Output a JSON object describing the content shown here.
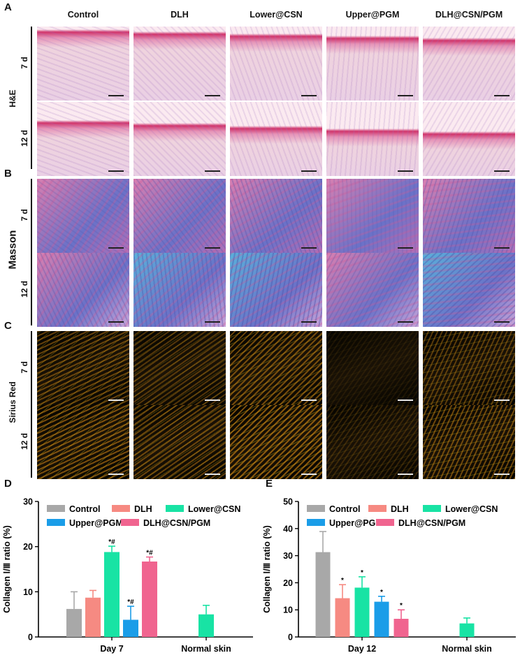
{
  "histology": {
    "letters": [
      "A",
      "B",
      "C"
    ],
    "columns": [
      "Control",
      "DLH",
      "Lower@CSN",
      "Upper@PGM",
      "DLH@CSN/PGM"
    ],
    "rows": [
      "7 d",
      "12 d"
    ],
    "stains": [
      "H&E",
      "Masson",
      "Sirius Red"
    ],
    "colors": {
      "he_bg": "#efd3de",
      "he_epi": "#d0336a",
      "he_fiber": "#b894c4",
      "masson_pink": "#d97fb0",
      "masson_blue": "#6a72c8",
      "masson_cyan": "#5ab0da",
      "sirius_bg": "#050400",
      "sirius_orange": "#f29a16",
      "sirius_yellow": "#e8d21a",
      "sirius_green": "#7fbf2a"
    }
  },
  "chart_data": [
    {
      "panel": "D",
      "type": "bar",
      "ylabel": "Collagen Ⅰ/Ⅲ ratio (%)",
      "ylim": [
        0,
        30
      ],
      "yticks": [
        0,
        10,
        20,
        30
      ],
      "groups": [
        "Day 7",
        "Normal skin"
      ],
      "legend": [
        "Control",
        "DLH",
        "Lower@CSN",
        "Upper@PGM",
        "DLH@CSN/PGM"
      ],
      "colors": [
        "#a8a8a8",
        "#f68a82",
        "#18e3a4",
        "#1a9de8",
        "#f0648f"
      ],
      "bars": [
        {
          "group": "Day 7",
          "series": "Control",
          "value": 6.2,
          "error": 3.8,
          "annotation": ""
        },
        {
          "group": "Day 7",
          "series": "DLH",
          "value": 8.7,
          "error": 1.6,
          "annotation": ""
        },
        {
          "group": "Day 7",
          "series": "Lower@CSN",
          "value": 18.8,
          "error": 1.3,
          "annotation": "*#"
        },
        {
          "group": "Day 7",
          "series": "Upper@PGM",
          "value": 3.8,
          "error": 3.0,
          "annotation": "*#"
        },
        {
          "group": "Day 7",
          "series": "DLH@CSN/PGM",
          "value": 16.7,
          "error": 1.0,
          "annotation": "*#"
        },
        {
          "group": "Normal skin",
          "series": "Lower@CSN",
          "value": 5.0,
          "error": 2.0,
          "annotation": ""
        }
      ]
    },
    {
      "panel": "E",
      "type": "bar",
      "ylabel": "Collagen Ⅰ/Ⅲ ratio (%)",
      "ylim": [
        0,
        50
      ],
      "yticks": [
        0,
        10,
        20,
        30,
        40,
        50
      ],
      "groups": [
        "Day 12",
        "Normal skin"
      ],
      "legend": [
        "Control",
        "DLH",
        "Lower@CSN",
        "Upper@PGM",
        "DLH@CSN/PGM"
      ],
      "colors": [
        "#a8a8a8",
        "#f68a82",
        "#18e3a4",
        "#1a9de8",
        "#f0648f"
      ],
      "bars": [
        {
          "group": "Day 12",
          "series": "Control",
          "value": 31.3,
          "error": 7.6,
          "annotation": ""
        },
        {
          "group": "Day 12",
          "series": "DLH",
          "value": 14.3,
          "error": 5.0,
          "annotation": "*"
        },
        {
          "group": "Day 12",
          "series": "Lower@CSN",
          "value": 18.2,
          "error": 4.0,
          "annotation": "*"
        },
        {
          "group": "Day 12",
          "series": "Upper@PGM",
          "value": 13.0,
          "error": 2.0,
          "annotation": "*"
        },
        {
          "group": "Day 12",
          "series": "DLH@CSN/PGM",
          "value": 6.7,
          "error": 3.3,
          "annotation": "*"
        },
        {
          "group": "Normal skin",
          "series": "Lower@CSN",
          "value": 5.0,
          "error": 2.0,
          "annotation": ""
        }
      ]
    }
  ]
}
